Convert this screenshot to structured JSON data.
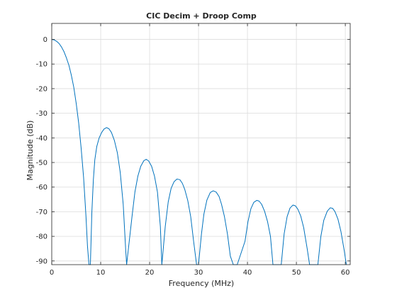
{
  "chart_data": {
    "type": "line",
    "title": "CIC Decim + Droop Comp",
    "xlabel": "Frequency (MHz)",
    "ylabel": "Magnitude (dB)",
    "xlim": [
      0,
      61
    ],
    "ylim": [
      -91.5,
      6.5
    ],
    "xticks": [
      0,
      10,
      20,
      30,
      40,
      50,
      60
    ],
    "yticks": [
      0,
      -10,
      -20,
      -30,
      -40,
      -50,
      -60,
      -70,
      -80,
      -90
    ],
    "grid": true,
    "line_color": "#0072bd",
    "series": [
      {
        "name": "",
        "x": [
          0,
          0.5,
          1,
          1.5,
          2,
          2.5,
          3,
          3.5,
          4,
          4.5,
          5,
          5.5,
          6,
          6.5,
          7,
          7.3,
          7.6,
          7.9,
          8.2,
          8.5,
          8.8,
          9.2,
          9.7,
          10.2,
          10.7,
          11.2,
          11.7,
          12.2,
          12.8,
          13.4,
          14,
          14.6,
          15.1,
          15.3,
          16.4,
          17,
          17.6,
          18.2,
          18.8,
          19.3,
          19.8,
          20.4,
          21,
          21.6,
          22.2,
          22.5,
          23.2,
          23.8,
          24.4,
          25,
          25.6,
          26.2,
          26.7,
          27.2,
          27.8,
          28.4,
          29,
          29.6,
          30,
          30.6,
          31.1,
          31.7,
          32.4,
          33,
          33.6,
          34.2,
          34.7,
          35.3,
          35.9,
          36.5,
          37.1,
          37.6,
          37.9,
          39.5,
          40.1,
          40.7,
          41.3,
          41.9,
          42.4,
          42.9,
          43.5,
          44.1,
          44.7,
          45.2,
          46.9,
          47.5,
          48.1,
          48.7,
          49.3,
          49.8,
          50.3,
          50.9,
          51.5,
          52.2,
          52.7,
          54.4,
          55,
          55.6,
          56.3,
          56.9,
          57.4,
          57.9,
          58.5,
          59.1,
          59.8,
          60.2
        ],
        "y": [
          0,
          -0.2,
          -0.8,
          -1.7,
          -3.1,
          -5,
          -7.5,
          -10.5,
          -14.5,
          -19.5,
          -26,
          -34,
          -44,
          -56,
          -72,
          -84,
          -91.5,
          -91.5,
          -70,
          -57,
          -49,
          -43.5,
          -40,
          -37.8,
          -36.4,
          -35.8,
          -36.3,
          -37.8,
          -41,
          -46,
          -54,
          -67,
          -85,
          -91.5,
          -72,
          -62,
          -55.5,
          -51.5,
          -49.3,
          -48.7,
          -49.4,
          -51.5,
          -55.5,
          -62,
          -76,
          -91.5,
          -76,
          -66,
          -60.5,
          -57.8,
          -56.7,
          -57,
          -58.5,
          -61,
          -65.5,
          -72,
          -82,
          -91.5,
          -91.5,
          -79,
          -71,
          -65.3,
          -62.2,
          -61.5,
          -62,
          -63.8,
          -67,
          -72,
          -79,
          -88,
          -91.5,
          -91.5,
          -91.5,
          -82,
          -74,
          -68.8,
          -66.2,
          -65.4,
          -65.7,
          -67,
          -69.8,
          -74,
          -80,
          -91.5,
          -91.5,
          -79,
          -72,
          -68.5,
          -67.3,
          -67.6,
          -69,
          -71.8,
          -76.5,
          -85,
          -91.5,
          -91.5,
          -80,
          -73.5,
          -69.8,
          -68.4,
          -68.6,
          -70,
          -73,
          -78,
          -86,
          -91.5
        ]
      }
    ]
  }
}
